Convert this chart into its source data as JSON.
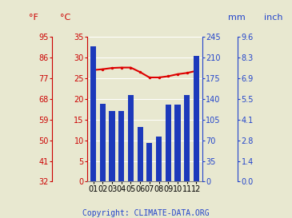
{
  "months": [
    "01",
    "02",
    "03",
    "04",
    "05",
    "06",
    "07",
    "08",
    "09",
    "10",
    "11",
    "12"
  ],
  "precipitation_mm": [
    229,
    132,
    120,
    120,
    147,
    93,
    65,
    76,
    131,
    131,
    147,
    213
  ],
  "temperature_c": [
    27.0,
    27.2,
    27.5,
    27.6,
    27.6,
    26.5,
    25.2,
    25.2,
    25.5,
    26.0,
    26.3,
    26.8
  ],
  "bar_color": "#1c39bb",
  "line_color": "#dd0000",
  "left_axis_color": "#cc0000",
  "right_axis_color": "#2244cc",
  "background_color": "#e8e8d0",
  "fahrenheit_ticks": [
    32,
    41,
    50,
    59,
    68,
    77,
    86,
    95
  ],
  "celsius_ticks": [
    0,
    5,
    10,
    15,
    20,
    25,
    30,
    35
  ],
  "mm_ticks": [
    0,
    35,
    70,
    105,
    140,
    175,
    210,
    245
  ],
  "inch_ticks": [
    "0.0",
    "1.4",
    "2.8",
    "4.1",
    "5.5",
    "6.9",
    "8.3",
    "9.6"
  ],
  "ylim_temp_c": [
    0,
    35
  ],
  "ylim_precip": [
    0,
    245
  ],
  "copyright_text": "Copyright: CLIMATE-DATA.ORG",
  "copyright_color": "#2244cc",
  "grid_color": "#ffffff",
  "label_fF": "°F",
  "label_fC": "°C",
  "label_mm": "mm",
  "label_inch": "inch"
}
